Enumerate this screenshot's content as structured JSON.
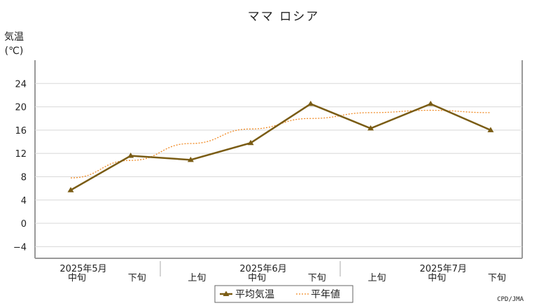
{
  "chart_data": {
    "type": "line",
    "title": "ママ ロシア",
    "ylabel_line1": "気温",
    "ylabel_line2": "(℃)",
    "ylim": [
      -6,
      28
    ],
    "yticks": [
      -4,
      0,
      4,
      8,
      12,
      16,
      20,
      24
    ],
    "grid": true,
    "categories": [
      "中旬",
      "下旬",
      "上旬",
      "中旬",
      "下旬",
      "上旬",
      "中旬",
      "下旬"
    ],
    "month_labels": [
      {
        "label": "2025年5月",
        "category_index": 0
      },
      {
        "label": "2025年6月",
        "category_index": 3
      },
      {
        "label": "2025年7月",
        "category_index": 6
      }
    ],
    "series": [
      {
        "name": "平均気温",
        "style": "solid-marker",
        "color": "#7a5c14",
        "values": [
          5.7,
          11.6,
          10.9,
          13.8,
          20.5,
          16.3,
          20.5,
          16.0
        ]
      },
      {
        "name": "平年値",
        "style": "dotted",
        "color": "#f08a24",
        "values": [
          7.8,
          10.8,
          13.7,
          16.2,
          18.0,
          19.0,
          19.4,
          19.0
        ]
      }
    ],
    "legend_position": "bottom",
    "credit": "CPD/JMA"
  }
}
